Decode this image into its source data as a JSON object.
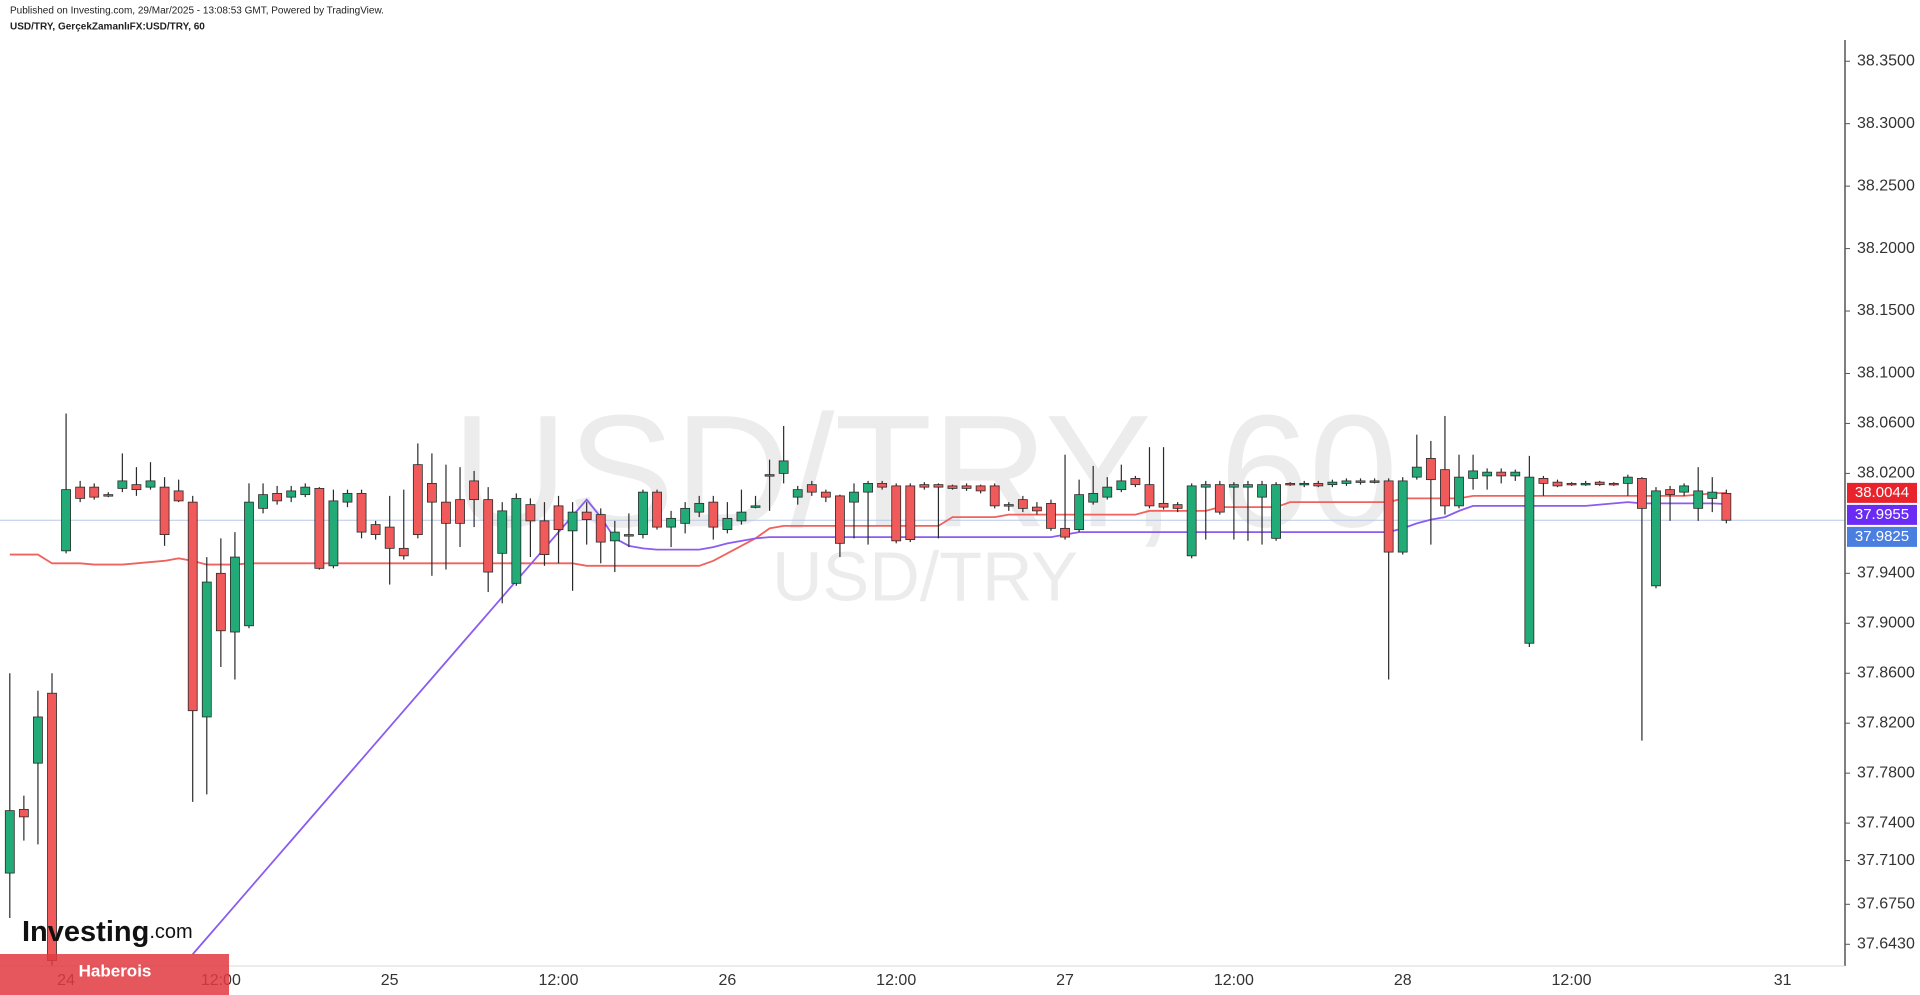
{
  "header": {
    "published": "Published on Investing.com, 29/Mar/2025 - 13:08:53 GMT, Powered by TradingView.",
    "symbol": "USD/TRY, GerçekZamanlıFX:USD/TRY, 60"
  },
  "branding": {
    "logo": "Investing",
    "logo_suffix": ".com",
    "banner": "Haberois"
  },
  "chart_data": {
    "type": "candlestick",
    "watermark": "USD/TRY, 60",
    "watermark_sub": "USD/TRY",
    "up_color": "#22ab77",
    "down_color": "#f05a5a",
    "grid": false,
    "categories": [
      null,
      null,
      null,
      null,
      "24",
      null,
      null,
      null,
      null,
      null,
      null,
      null,
      null,
      null,
      null,
      "12:00",
      null,
      null,
      null,
      null,
      null,
      null,
      null,
      null,
      null,
      null,
      null,
      "25",
      null,
      null,
      null,
      null,
      null,
      null,
      null,
      null,
      null,
      null,
      null,
      "12:00",
      null,
      null,
      null,
      null,
      null,
      null,
      null,
      null,
      null,
      null,
      null,
      "26",
      null,
      null,
      null,
      null,
      null,
      null,
      null,
      null,
      null,
      null,
      null,
      "12:00",
      null,
      null,
      null,
      null,
      null,
      null,
      null,
      null,
      null,
      null,
      null,
      "27",
      null,
      null,
      null,
      null,
      null,
      null,
      null,
      null,
      null,
      null,
      null,
      "12:00",
      null,
      null,
      null,
      null,
      null,
      null,
      null,
      null,
      null,
      null,
      null,
      "28",
      null,
      null,
      null,
      null,
      null,
      null,
      null,
      null,
      null,
      null,
      null,
      "12:00",
      null,
      null,
      null,
      null,
      null,
      null,
      null,
      null,
      null,
      null,
      null,
      null,
      null,
      null,
      "31"
    ],
    "open": [
      37.7,
      37.751,
      37.788,
      37.844,
      37.958,
      38.009,
      38.009,
      38.003,
      38.008,
      38.011,
      38.009,
      38.009,
      38.006,
      37.997,
      37.825,
      37.94,
      37.893,
      37.898,
      37.992,
      38.004,
      38.001,
      38.003,
      38.008,
      37.946,
      37.997,
      38.004,
      37.979,
      37.977,
      37.96,
      38.027,
      38.012,
      37.997,
      37.999,
      38.014,
      37.999,
      37.956,
      37.932,
      37.995,
      37.982,
      37.994,
      37.974,
      37.989,
      37.987,
      37.966,
      37.97,
      37.971,
      38.005,
      37.977,
      37.98,
      37.989,
      37.997,
      37.975,
      37.982,
      37.993,
      38.018,
      38.02,
      38.001,
      38.011,
      38.005,
      38.002,
      37.997,
      38.005,
      38.012,
      38.01,
      38.01,
      38.011,
      38.011,
      38.01,
      38.01,
      38.01,
      38.01,
      37.995,
      37.999,
      37.993,
      37.996,
      37.976,
      37.975,
      37.997,
      38.001,
      38.007,
      38.016,
      38.011,
      37.996,
      37.995,
      37.954,
      38.009,
      38.011,
      38.009,
      38.009,
      38.001,
      37.968,
      38.012,
      38.011,
      38.012,
      38.011,
      38.012,
      38.014,
      38.013,
      38.014,
      37.957,
      38.017,
      38.032,
      38.023,
      37.994,
      38.016,
      38.018,
      38.021,
      38.018,
      37.884,
      38.016,
      38.013,
      38.012,
      38.011,
      38.013,
      38.012,
      38.012,
      38.016,
      37.93,
      38.007,
      38.005,
      37.992,
      38.0,
      38.004,
      null,
      null,
      null,
      null
    ],
    "high": [
      37.86,
      37.762,
      37.846,
      37.86,
      38.068,
      38.014,
      38.012,
      38.005,
      38.036,
      38.025,
      38.029,
      38.017,
      38.015,
      38.002,
      37.953,
      37.968,
      37.973,
      38.012,
      38.012,
      38.01,
      38.01,
      38.012,
      38.009,
      38.007,
      38.007,
      38.007,
      37.982,
      38.002,
      38.007,
      38.044,
      38.036,
      38.027,
      38.025,
      38.022,
      38.009,
      37.997,
      38.004,
      38.0,
      37.997,
      38.002,
      37.997,
      37.997,
      37.992,
      37.982,
      37.988,
      38.007,
      38.007,
      37.99,
      37.997,
      38.002,
      38.002,
      37.997,
      38.007,
      38.002,
      38.031,
      38.058,
      38.01,
      38.014,
      38.007,
      38.003,
      38.012,
      38.014,
      38.014,
      38.012,
      38.012,
      38.013,
      38.012,
      38.011,
      38.012,
      38.011,
      38.012,
      37.997,
      38.002,
      37.997,
      37.999,
      38.035,
      38.015,
      38.026,
      38.017,
      38.027,
      38.018,
      38.041,
      38.041,
      37.997,
      38.012,
      38.014,
      38.014,
      38.013,
      38.014,
      38.014,
      38.013,
      38.013,
      38.014,
      38.014,
      38.015,
      38.016,
      38.016,
      38.016,
      38.016,
      38.017,
      38.051,
      38.046,
      38.066,
      38.035,
      38.035,
      38.024,
      38.024,
      38.023,
      38.034,
      38.018,
      38.015,
      38.013,
      38.014,
      38.014,
      38.013,
      38.019,
      38.017,
      38.009,
      38.01,
      38.012,
      38.025,
      38.017,
      38.007,
      null,
      null,
      null,
      null
    ],
    "low": [
      37.664,
      37.726,
      37.723,
      37.626,
      37.956,
      37.997,
      37.999,
      38.001,
      38.005,
      38.002,
      38.007,
      37.962,
      37.997,
      37.757,
      37.763,
      37.865,
      37.855,
      37.896,
      37.988,
      37.995,
      37.997,
      38.001,
      37.943,
      37.944,
      37.993,
      37.968,
      37.967,
      37.931,
      37.951,
      37.968,
      37.938,
      37.943,
      37.961,
      37.977,
      37.925,
      37.916,
      37.93,
      37.953,
      37.946,
      37.948,
      37.926,
      37.963,
      37.948,
      37.941,
      37.961,
      37.968,
      37.975,
      37.961,
      37.972,
      37.985,
      37.967,
      37.972,
      37.979,
      37.992,
      37.99,
      38.012,
      37.995,
      38.002,
      37.997,
      37.953,
      37.968,
      37.963,
      38.007,
      37.964,
      37.965,
      38.007,
      37.968,
      38.007,
      38.006,
      38.004,
      37.992,
      37.99,
      37.989,
      37.987,
      37.974,
      37.967,
      37.973,
      37.995,
      37.999,
      38.005,
      38.009,
      37.992,
      37.991,
      37.989,
      37.952,
      37.967,
      37.987,
      37.967,
      37.966,
      37.963,
      37.966,
      38.01,
      38.009,
      38.009,
      38.009,
      38.01,
      38.011,
      38.012,
      37.855,
      37.955,
      38.015,
      37.963,
      37.987,
      37.992,
      38.007,
      38.007,
      38.012,
      38.014,
      37.881,
      38.002,
      38.009,
      38.01,
      38.01,
      38.01,
      38.01,
      38.002,
      37.806,
      37.928,
      37.982,
      38.002,
      37.982,
      37.989,
      37.98,
      null,
      null,
      null,
      null
    ],
    "close": [
      37.75,
      37.745,
      37.825,
      37.63,
      38.007,
      38.0,
      38.001,
      38.002,
      38.014,
      38.007,
      38.014,
      37.971,
      37.998,
      37.83,
      37.933,
      37.894,
      37.953,
      37.997,
      38.003,
      37.998,
      38.006,
      38.009,
      37.944,
      37.998,
      38.004,
      37.973,
      37.971,
      37.96,
      37.954,
      37.971,
      37.997,
      37.98,
      37.98,
      37.999,
      37.941,
      37.99,
      38.0,
      37.982,
      37.955,
      37.975,
      37.989,
      37.983,
      37.965,
      37.973,
      37.971,
      38.005,
      37.977,
      37.984,
      37.992,
      37.996,
      37.977,
      37.984,
      37.989,
      37.994,
      38.019,
      38.03,
      38.007,
      38.005,
      38.001,
      37.964,
      38.005,
      38.012,
      38.009,
      37.966,
      37.967,
      38.009,
      38.009,
      38.008,
      38.008,
      38.006,
      37.994,
      37.994,
      37.992,
      37.99,
      37.976,
      37.969,
      38.003,
      38.004,
      38.009,
      38.014,
      38.011,
      37.994,
      37.993,
      37.992,
      38.01,
      38.011,
      37.989,
      38.011,
      38.011,
      38.011,
      38.011,
      38.011,
      38.012,
      38.01,
      38.013,
      38.014,
      38.013,
      38.014,
      37.957,
      38.014,
      38.025,
      38.015,
      37.994,
      38.017,
      38.022,
      38.021,
      38.018,
      38.021,
      38.017,
      38.012,
      38.01,
      38.011,
      38.012,
      38.011,
      38.011,
      38.017,
      37.992,
      38.006,
      38.003,
      38.01,
      38.006,
      38.005,
      37.9825,
      null,
      null,
      null,
      null
    ],
    "lines": [
      {
        "color": "#f0625d",
        "values": [
          37.955,
          37.955,
          37.955,
          37.948,
          37.948,
          37.948,
          37.947,
          37.947,
          37.947,
          37.948,
          37.949,
          37.95,
          37.952,
          37.95,
          37.947,
          37.947,
          37.947,
          37.948,
          37.948,
          37.948,
          37.948,
          37.948,
          37.948,
          37.948,
          37.948,
          37.948,
          37.948,
          37.948,
          37.948,
          37.948,
          37.948,
          37.948,
          37.948,
          37.948,
          37.948,
          37.948,
          37.948,
          37.948,
          37.948,
          37.948,
          37.948,
          37.946,
          37.946,
          37.946,
          37.946,
          37.946,
          37.946,
          37.946,
          37.946,
          37.946,
          37.95,
          37.956,
          37.962,
          37.968,
          37.976,
          37.978,
          37.978,
          37.978,
          37.978,
          37.978,
          37.978,
          37.978,
          37.978,
          37.978,
          37.978,
          37.978,
          37.978,
          37.985,
          37.985,
          37.985,
          37.985,
          37.987,
          37.987,
          37.987,
          37.987,
          37.987,
          37.987,
          37.987,
          37.987,
          37.987,
          37.987,
          37.99,
          37.99,
          37.99,
          37.99,
          37.99,
          37.993,
          37.993,
          37.993,
          37.993,
          37.993,
          37.997,
          37.997,
          37.997,
          37.997,
          37.997,
          37.997,
          37.997,
          37.997,
          38.0,
          38.0,
          38.0,
          38.0,
          38.0,
          38.002,
          38.002,
          38.002,
          38.002,
          38.002,
          38.002,
          38.002,
          38.002,
          38.002,
          38.002,
          38.002,
          38.002,
          38.002,
          38.002,
          38.002,
          38.002,
          38.003,
          38.004,
          38.0044,
          null,
          null,
          null,
          null
        ]
      },
      {
        "color": "#8a5cf0",
        "values": [
          null,
          null,
          null,
          null,
          null,
          null,
          null,
          null,
          null,
          null,
          null,
          null,
          null,
          37.635,
          37.648,
          37.661,
          37.674,
          37.687,
          37.7,
          37.713,
          37.726,
          37.739,
          37.752,
          37.765,
          37.778,
          37.791,
          37.804,
          37.817,
          37.83,
          37.843,
          37.856,
          37.869,
          37.882,
          37.895,
          37.908,
          37.921,
          37.934,
          37.947,
          37.96,
          37.973,
          37.986,
          37.999,
          37.985,
          37.968,
          37.962,
          37.96,
          37.959,
          37.959,
          37.959,
          37.959,
          37.961,
          37.964,
          37.966,
          37.968,
          37.969,
          37.969,
          37.969,
          37.969,
          37.969,
          37.969,
          37.969,
          37.969,
          37.969,
          37.969,
          37.969,
          37.969,
          37.969,
          37.969,
          37.969,
          37.969,
          37.969,
          37.969,
          37.969,
          37.969,
          37.969,
          37.971,
          37.973,
          37.973,
          37.973,
          37.973,
          37.973,
          37.973,
          37.973,
          37.973,
          37.973,
          37.973,
          37.973,
          37.973,
          37.973,
          37.973,
          37.973,
          37.973,
          37.973,
          37.973,
          37.973,
          37.973,
          37.973,
          37.973,
          37.973,
          37.976,
          37.98,
          37.983,
          37.985,
          37.99,
          37.994,
          37.994,
          37.994,
          37.994,
          37.994,
          37.994,
          37.994,
          37.994,
          37.994,
          37.995,
          37.996,
          37.997,
          37.996,
          37.996,
          37.996,
          37.996,
          37.996,
          37.996,
          37.9955,
          null,
          null,
          null,
          null
        ]
      }
    ],
    "price_labels": [
      {
        "value": 38.0044,
        "color": "#e8232b"
      },
      {
        "value": 37.9955,
        "color": "#6a2cf5"
      },
      {
        "value": 37.9825,
        "color": "#4a7fe0"
      }
    ],
    "ylim": [
      37.6256,
      38.367
    ],
    "yticks": [
      {
        "value": 38.35,
        "label": "38.3500"
      },
      {
        "value": 38.3,
        "label": "38.3000"
      },
      {
        "value": 38.25,
        "label": "38.2500"
      },
      {
        "value": 38.2,
        "label": "38.2000"
      },
      {
        "value": 38.15,
        "label": "38.1500"
      },
      {
        "value": 38.1,
        "label": "38.1000"
      },
      {
        "value": 38.06,
        "label": "38.0600"
      },
      {
        "value": 38.02,
        "label": "38.0200"
      },
      {
        "value": 37.94,
        "label": "37.9400"
      },
      {
        "value": 37.9,
        "label": "37.9000"
      },
      {
        "value": 37.86,
        "label": "37.8600"
      },
      {
        "value": 37.82,
        "label": "37.8200"
      },
      {
        "value": 37.78,
        "label": "37.7800"
      },
      {
        "value": 37.74,
        "label": "37.7400"
      },
      {
        "value": 37.71,
        "label": "37.7100"
      },
      {
        "value": 37.675,
        "label": "37.6750"
      },
      {
        "value": 37.643,
        "label": "37.6430"
      }
    ]
  }
}
